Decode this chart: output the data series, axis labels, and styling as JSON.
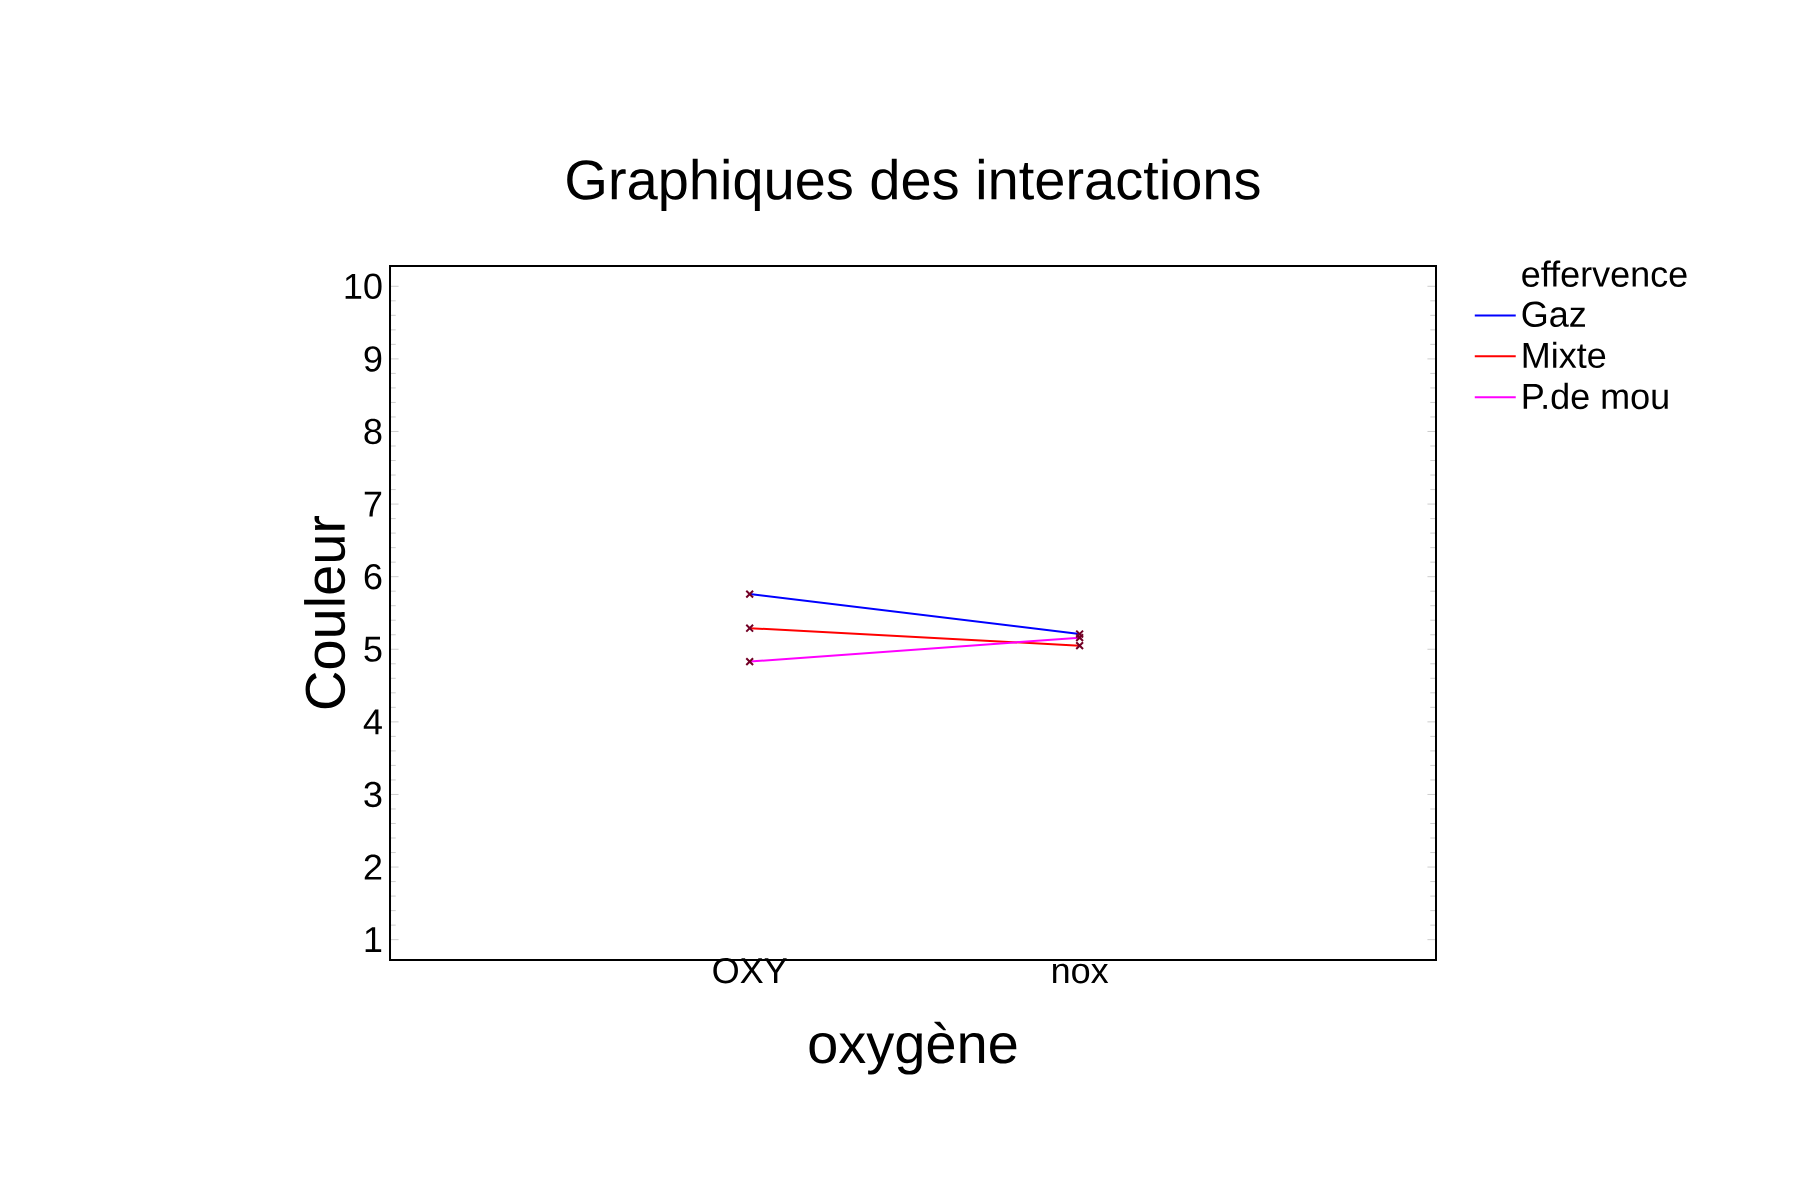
{
  "chart_data": {
    "type": "line",
    "title": "Graphiques des interactions",
    "xlabel": "oxygène",
    "ylabel": "Couleur",
    "legend_title": "effervence",
    "categories": [
      "OXY",
      "nox"
    ],
    "series": [
      {
        "name": "Gaz",
        "color": "#0000ff",
        "values": [
          5.76,
          5.21
        ]
      },
      {
        "name": "Mixte",
        "color": "#ff0000",
        "values": [
          5.29,
          5.05
        ]
      },
      {
        "name": "P.de mou",
        "color": "#ff00ff",
        "values": [
          4.83,
          5.16
        ]
      }
    ],
    "ylim": [
      0.72,
      10.28
    ],
    "yticks": [
      1,
      2,
      3,
      4,
      5,
      6,
      7,
      8,
      9,
      10
    ],
    "legend": "right",
    "marker": "cross",
    "line_style": "solid"
  }
}
